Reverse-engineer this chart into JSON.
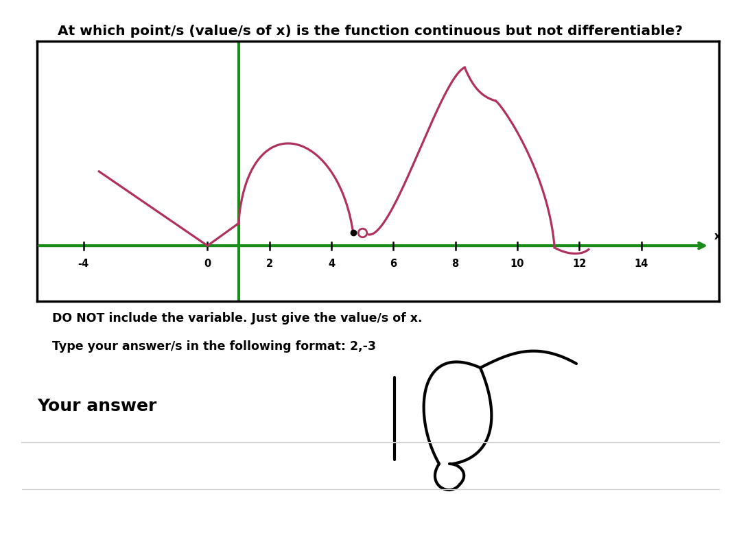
{
  "title": "At which point/s (value/s of x) is the function continuous but not differentiable?",
  "title_fontsize": 14.5,
  "bg_color": "#ffffff",
  "graph_bg": "#ffffff",
  "axis_color": "#1a8c1a",
  "curve_color": "#b03060",
  "x_min": -5.5,
  "x_max": 16.5,
  "y_min": -1.5,
  "y_max": 5.5,
  "x_ticks": [
    -4,
    0,
    2,
    4,
    6,
    8,
    10,
    12,
    14
  ],
  "tick_labels": [
    "-4",
    "0",
    "2",
    "4",
    "6",
    "8",
    "10",
    "12",
    "14"
  ],
  "instruction_line1": "DO NOT include the variable. Just give the value/s of x.",
  "instruction_line2": "Type your answer/s in the following format: 2,-3",
  "your_answer_label": "Your answer",
  "green_line_x": 1
}
